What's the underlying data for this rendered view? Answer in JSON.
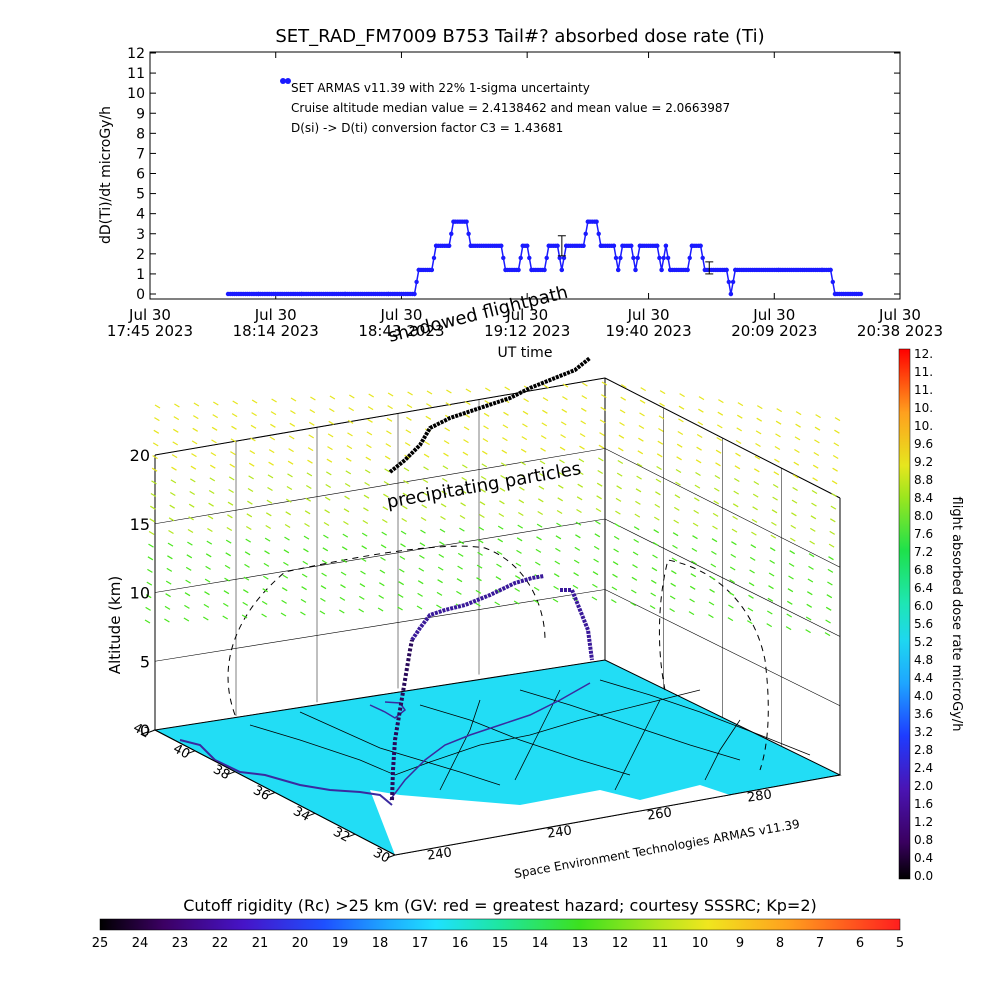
{
  "chart_data": [
    {
      "type": "line",
      "title": "SET_RAD_FM7009  B753 Tail#? absorbed dose rate (Ti)",
      "ylabel": "dD(Ti)/dt microGy/h",
      "xlabel": "UT time",
      "ylim": [
        0,
        12
      ],
      "yticks": [
        "0",
        "1",
        "2",
        "3",
        "4",
        "5",
        "6",
        "7",
        "8",
        "9",
        "10",
        "11",
        "12"
      ],
      "xlim": [
        "17:45",
        "20:38"
      ],
      "xticks": [
        {
          "t": "17:45",
          "line1": "Jul 30",
          "line2": "17:45 2023"
        },
        {
          "t": "18:14",
          "line1": "Jul 30",
          "line2": "18:14 2023"
        },
        {
          "t": "18:43",
          "line1": "Jul 30",
          "line2": "18:43 2023"
        },
        {
          "t": "19:12",
          "line1": "Jul 30",
          "line2": "19:12 2023"
        },
        {
          "t": "19:40",
          "line1": "Jul 30",
          "line2": "19:40 2023"
        },
        {
          "t": "20:09",
          "line1": "Jul 30",
          "line2": "20:09 2023"
        },
        {
          "t": "20:38",
          "line1": "Jul 30",
          "line2": "20:38 2023"
        }
      ],
      "annotations": [
        "SET ARMAS v11.39 with 22% 1-sigma uncertainty",
        "Cruise altitude median value = 2.4138462 and mean value = 2.0663987",
        "D(si) -> D(ti) conversion factor C3 = 1.43681"
      ],
      "series_color": "#1a1aff",
      "series": [
        {
          "values": [
            [
              "18:03",
              0
            ],
            [
              "18:10",
              0
            ],
            [
              "18:20",
              0
            ],
            [
              "18:30",
              0
            ],
            [
              "18:40",
              0
            ],
            [
              "18:46",
              0
            ],
            [
              "18:47",
              1.2
            ],
            [
              "18:50",
              1.2
            ],
            [
              "18:51",
              2.4
            ],
            [
              "18:54",
              2.4
            ],
            [
              "18:55",
              3.6
            ],
            [
              "18:58",
              3.6
            ],
            [
              "18:59",
              2.4
            ],
            [
              "19:06",
              2.4
            ],
            [
              "19:07",
              1.2
            ],
            [
              "19:10",
              1.2
            ],
            [
              "19:11",
              2.4
            ],
            [
              "19:12",
              2.4
            ],
            [
              "19:13",
              1.2
            ],
            [
              "19:16",
              1.2
            ],
            [
              "19:17",
              2.4
            ],
            [
              "19:19",
              2.4
            ],
            [
              "19:20",
              1.2
            ],
            [
              "19:21",
              2.4
            ],
            [
              "19:25",
              2.4
            ],
            [
              "19:26",
              3.6
            ],
            [
              "19:28",
              3.6
            ],
            [
              "19:29",
              2.4
            ],
            [
              "19:32",
              2.4
            ],
            [
              "19:33",
              1.2
            ],
            [
              "19:34",
              2.4
            ],
            [
              "19:36",
              2.4
            ],
            [
              "19:37",
              1.2
            ],
            [
              "19:38",
              2.4
            ],
            [
              "19:42",
              2.4
            ],
            [
              "19:43",
              1.2
            ],
            [
              "19:44",
              2.4
            ],
            [
              "19:45",
              1.2
            ],
            [
              "19:49",
              1.2
            ],
            [
              "19:50",
              2.4
            ],
            [
              "19:52",
              2.4
            ],
            [
              "19:53",
              1.2
            ],
            [
              "19:58",
              1.2
            ],
            [
              "19:59",
              0
            ],
            [
              "20:00",
              1.2
            ],
            [
              "20:10",
              1.2
            ],
            [
              "20:20",
              1.2
            ],
            [
              "20:22",
              1.2
            ],
            [
              "20:23",
              0
            ],
            [
              "20:29",
              0
            ]
          ]
        }
      ],
      "error_bars": [
        {
          "t": "19:20",
          "low": 1.9,
          "high": 2.9
        },
        {
          "t": "19:54",
          "low": 1.0,
          "high": 1.6
        }
      ]
    },
    {
      "type": "scatter",
      "xlabel": "Space Environment Technologies ARMAS v11.39",
      "ylabel": "Altitude (km)",
      "zticks": [
        "0",
        "5",
        "10",
        "15",
        "20"
      ],
      "lat_ticks": [
        "42",
        "40",
        "38",
        "36",
        "34",
        "32",
        "30"
      ],
      "lon_ticks": [
        "240",
        "240",
        "260",
        "280"
      ],
      "labels": {
        "shadowed": "shadowed flightpath",
        "precipitating": "precipitating particles"
      },
      "colorbar": {
        "label": "flight absorbed dose rate microGy/h",
        "ticks": [
          "12.",
          "11.",
          "11.",
          "10.",
          "10.",
          "9.6",
          "9.2",
          "8.8",
          "8.4",
          "8.0",
          "7.6",
          "7.2",
          "6.8",
          "6.4",
          "6.0",
          "5.6",
          "5.2",
          "4.8",
          "4.4",
          "4.0",
          "3.6",
          "3.2",
          "2.8",
          "2.4",
          "2.0",
          "1.6",
          "1.2",
          "0.8",
          "0.4",
          "0.0"
        ]
      },
      "map_color": "#22ddf5"
    },
    {
      "type": "heatmap",
      "title": "Cutoff rigidity (Rc) >25 km (GV: red = greatest hazard; courtesy SSSRC; Kp=2)",
      "ticks": [
        "25",
        "24",
        "23",
        "22",
        "21",
        "20",
        "19",
        "18",
        "17",
        "16",
        "15",
        "14",
        "13",
        "12",
        "11",
        "10",
        "9",
        "8",
        "7",
        "6",
        "5"
      ]
    }
  ]
}
